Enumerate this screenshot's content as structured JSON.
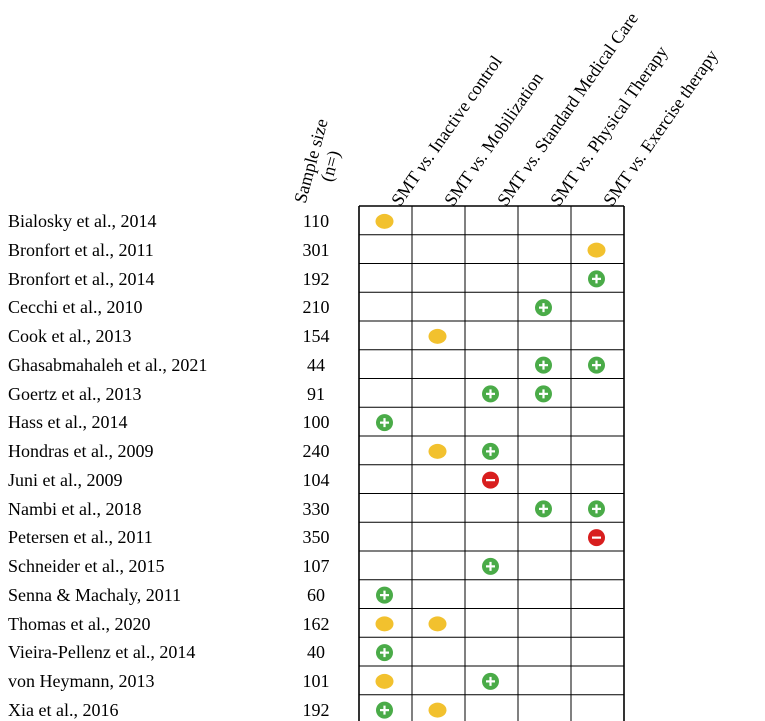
{
  "headers": {
    "sample_size_line1": "Sample size",
    "sample_size_line2": "(n=)",
    "comparisons": [
      {
        "prefix": "SMT ",
        "vs": "vs",
        "suffix": ". Inactive control"
      },
      {
        "prefix": "SMT ",
        "vs": "vs",
        "suffix": ". Mobilization"
      },
      {
        "prefix": "SMT ",
        "vs": "vs.",
        "suffix": " Standard Medical Care"
      },
      {
        "prefix": "SMT ",
        "vs": "vs",
        "suffix": ". Physical Therapy"
      },
      {
        "prefix": "SMT ",
        "vs": "vs.",
        "suffix": " Exercise therapy"
      }
    ]
  },
  "legend_colors": {
    "neutral": "#f2c12e",
    "positive": "#4aab48",
    "negative": "#d81e1e"
  },
  "rows": [
    {
      "study": "Bialosky et al., 2014",
      "n": "110",
      "marks": [
        "neutral",
        "",
        "",
        "",
        ""
      ]
    },
    {
      "study": "Bronfort et al., 2011",
      "n": "301",
      "marks": [
        "",
        "",
        "",
        "",
        "neutral"
      ]
    },
    {
      "study": "Bronfort et al., 2014",
      "n": "192",
      "marks": [
        "",
        "",
        "",
        "",
        "positive"
      ]
    },
    {
      "study": "Cecchi et al., 2010",
      "n": "210",
      "marks": [
        "",
        "",
        "",
        "positive",
        ""
      ]
    },
    {
      "study": "Cook et al., 2013",
      "n": "154",
      "marks": [
        "",
        "neutral",
        "",
        "",
        ""
      ]
    },
    {
      "study": "Ghasabmahaleh et al., 2021",
      "n": "44",
      "marks": [
        "",
        "",
        "",
        "positive",
        "positive"
      ]
    },
    {
      "study": "Goertz et al., 2013",
      "n": "91",
      "marks": [
        "",
        "",
        "positive",
        "positive",
        ""
      ]
    },
    {
      "study": "Hass et al., 2014",
      "n": "100",
      "marks": [
        "positive",
        "",
        "",
        "",
        ""
      ]
    },
    {
      "study": "Hondras et al., 2009",
      "n": "240",
      "marks": [
        "",
        "neutral",
        "positive",
        "",
        ""
      ]
    },
    {
      "study": "Juni et al., 2009",
      "n": "104",
      "marks": [
        "",
        "",
        "negative",
        "",
        ""
      ]
    },
    {
      "study": "Nambi et al., 2018",
      "n": "330",
      "marks": [
        "",
        "",
        "",
        "positive",
        "positive"
      ]
    },
    {
      "study": "Petersen et al., 2011",
      "n": "350",
      "marks": [
        "",
        "",
        "",
        "",
        "negative"
      ]
    },
    {
      "study": "Schneider et al., 2015",
      "n": "107",
      "marks": [
        "",
        "",
        "positive",
        "",
        ""
      ]
    },
    {
      "study": "Senna & Machaly, 2011",
      "n": "60",
      "marks": [
        "positive",
        "",
        "",
        "",
        ""
      ]
    },
    {
      "study": "Thomas et al., 2020",
      "n": "162",
      "marks": [
        "neutral",
        "neutral",
        "",
        "",
        ""
      ]
    },
    {
      "study": "Vieira-Pellenz et al., 2014",
      "n": "40",
      "marks": [
        "positive",
        "",
        "",
        "",
        ""
      ]
    },
    {
      "study": "von Heymann, 2013",
      "n": "101",
      "marks": [
        "neutral",
        "",
        "positive",
        "",
        ""
      ]
    },
    {
      "study": "Xia et al., 2016",
      "n": "192",
      "marks": [
        "positive",
        "neutral",
        "",
        "",
        ""
      ]
    }
  ]
}
